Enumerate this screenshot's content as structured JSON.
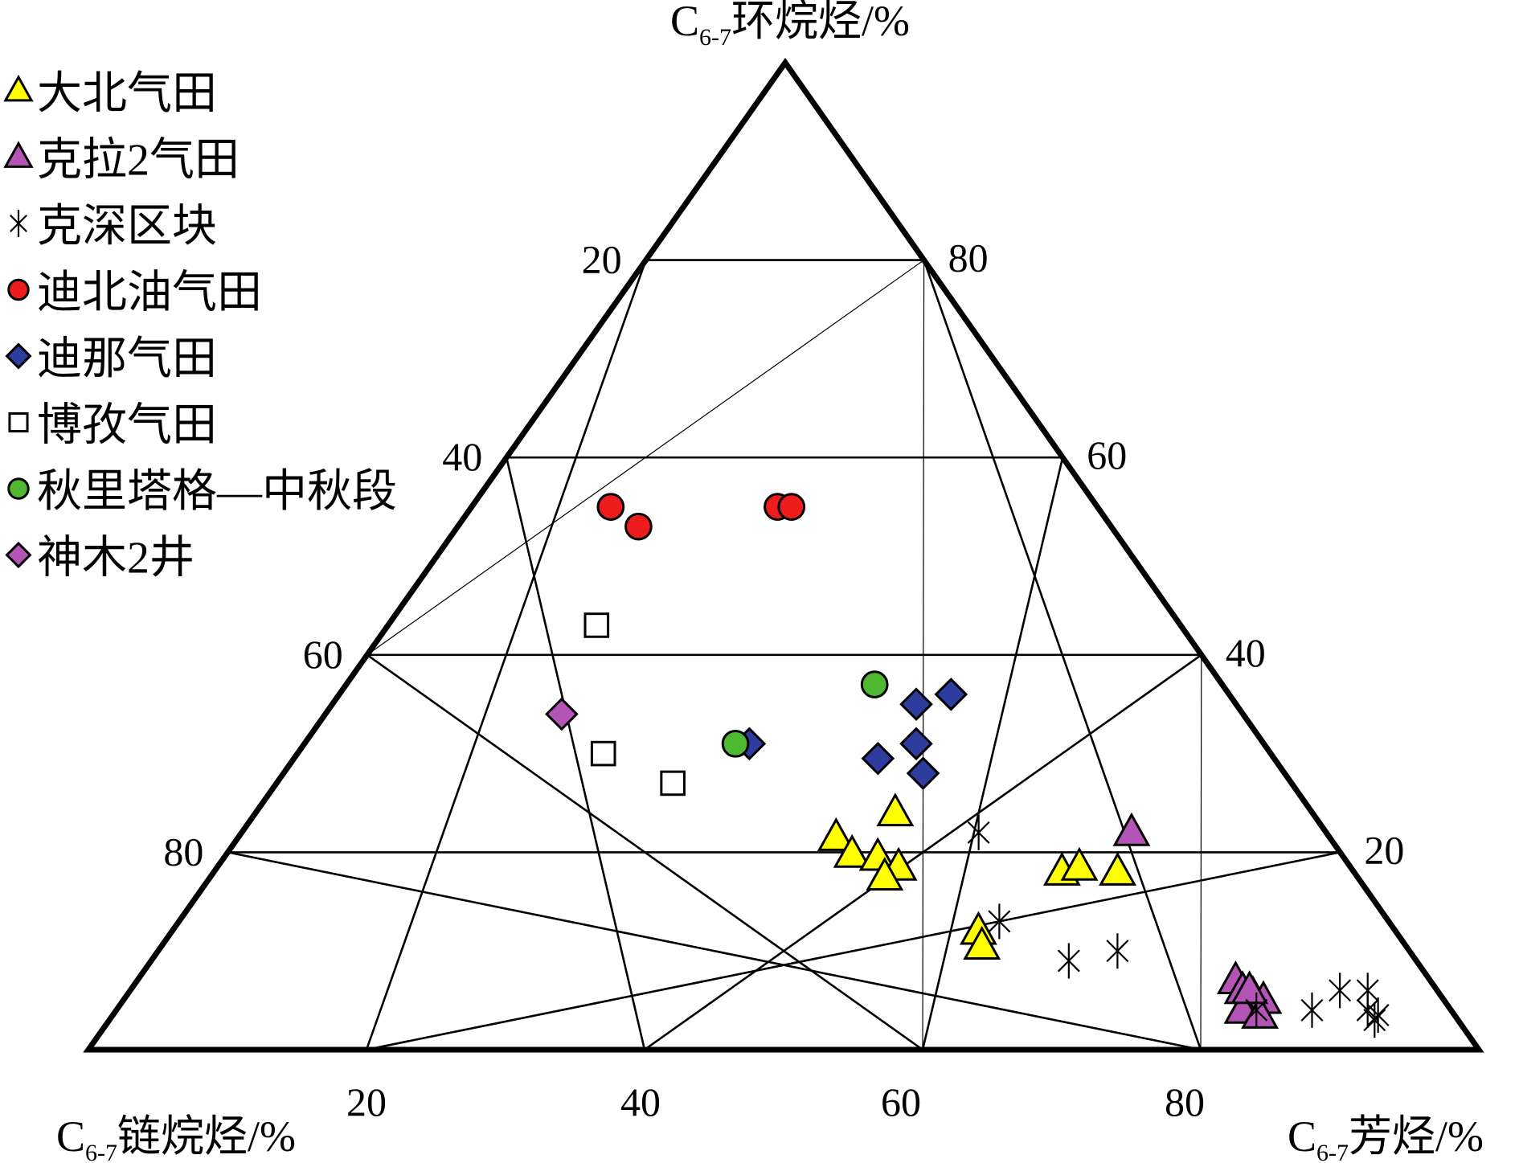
{
  "chart_data": {
    "type": "scatter",
    "subtype": "ternary",
    "axes": {
      "top": {
        "prefix": "C",
        "sub": "6-7",
        "name": "环烷烃/%"
      },
      "left": {
        "prefix": "C",
        "sub": "6-7",
        "name": "链烷烃/%"
      },
      "right": {
        "prefix": "C",
        "sub": "6-7",
        "name": "芳烃/%"
      }
    },
    "ticks": {
      "bottom": [
        "20",
        "40",
        "60",
        "80"
      ],
      "left": [
        "20",
        "40",
        "60",
        "80"
      ],
      "right": [
        "80",
        "60",
        "40",
        "20"
      ]
    },
    "grid": true,
    "legend_position": "top-left",
    "series": [
      {
        "name": "大北气田",
        "marker": "triangle",
        "color": "#ffff00",
        "points": [
          {
            "a": 24,
            "c": 46
          },
          {
            "a": 21.5,
            "c": 43
          },
          {
            "a": 19.8,
            "c": 45
          },
          {
            "a": 19.5,
            "c": 47
          },
          {
            "a": 18.5,
            "c": 49
          },
          {
            "a": 17.5,
            "c": 48.5
          },
          {
            "a": 12,
            "c": 58
          },
          {
            "a": 18,
            "c": 65
          },
          {
            "a": 18,
            "c": 61
          },
          {
            "a": 18.5,
            "c": 62
          },
          {
            "a": 10.5,
            "c": 59
          }
        ]
      },
      {
        "name": "克拉2气田",
        "marker": "triangle",
        "color": "#b455b6",
        "points": [
          {
            "a": 22,
            "c": 64
          },
          {
            "a": 7,
            "c": 79
          },
          {
            "a": 6,
            "c": 80
          },
          {
            "a": 5.5,
            "c": 81
          },
          {
            "a": 5,
            "c": 82
          },
          {
            "a": 4,
            "c": 81
          },
          {
            "a": 3.5,
            "c": 82.5
          },
          {
            "a": 6,
            "c": 80.5
          }
        ]
      },
      {
        "name": "克深区块",
        "marker": "asterisk",
        "color": "#000000",
        "points": [
          {
            "a": 22,
            "c": 53
          },
          {
            "a": 13,
            "c": 59
          },
          {
            "a": 9,
            "c": 66
          },
          {
            "a": 10,
            "c": 69
          },
          {
            "a": 4,
            "c": 82
          },
          {
            "a": 4,
            "c": 86
          },
          {
            "a": 6,
            "c": 89
          },
          {
            "a": 6,
            "c": 87
          },
          {
            "a": 4,
            "c": 90
          },
          {
            "a": 3.5,
            "c": 91
          },
          {
            "a": 3,
            "c": 91
          }
        ]
      },
      {
        "name": "迪北油气田",
        "marker": "circle",
        "color": "#ee1c1c",
        "points": [
          {
            "a": 55,
            "c": 10
          },
          {
            "a": 53,
            "c": 13
          },
          {
            "a": 55,
            "c": 22
          },
          {
            "a": 55,
            "c": 23
          }
        ]
      },
      {
        "name": "迪那气田",
        "marker": "diamond",
        "color": "#2e3c9e",
        "points": [
          {
            "a": 31,
            "c": 32
          },
          {
            "a": 35,
            "c": 42
          },
          {
            "a": 36,
            "c": 44
          },
          {
            "a": 28,
            "c": 46
          },
          {
            "a": 31,
            "c": 44
          },
          {
            "a": 29.5,
            "c": 42
          }
        ]
      },
      {
        "name": "博孜气田",
        "marker": "square",
        "color": "#ffffff",
        "points": [
          {
            "a": 43,
            "c": 15
          },
          {
            "a": 30,
            "c": 22
          },
          {
            "a": 27,
            "c": 28.5
          }
        ]
      },
      {
        "name": "秋里塔格—中秋段",
        "marker": "circle",
        "color": "#4db830",
        "points": [
          {
            "a": 31,
            "c": 31
          },
          {
            "a": 37,
            "c": 38
          }
        ]
      },
      {
        "name": "神木2井",
        "marker": "diamond",
        "color": "#b455b6",
        "points": [
          {
            "a": 34,
            "c": 17
          }
        ]
      }
    ]
  }
}
